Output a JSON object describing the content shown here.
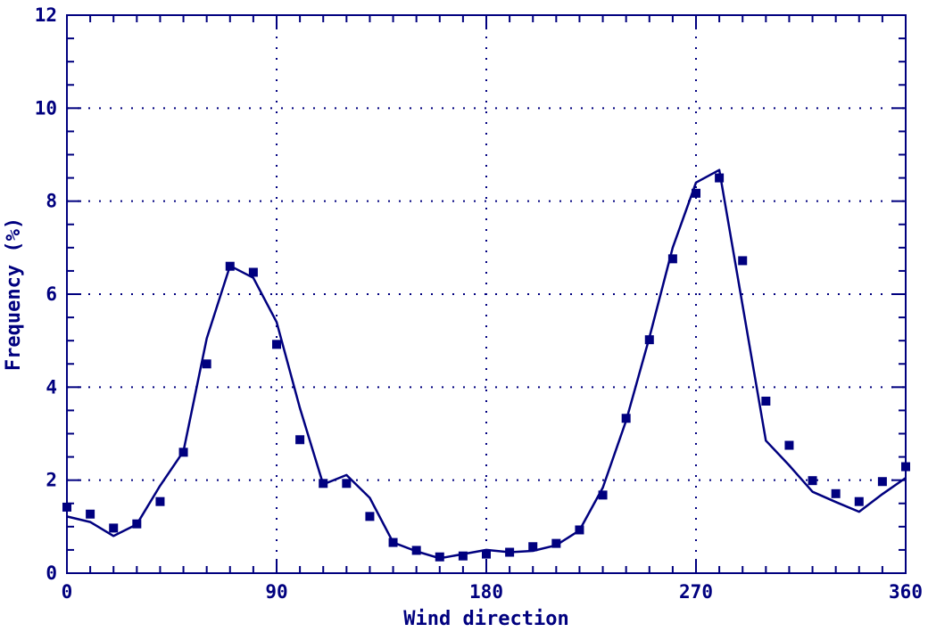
{
  "chart_data": {
    "type": "line",
    "title": "",
    "xlabel": "Wind direction",
    "ylabel": "Frequency (%)",
    "xlim": [
      0,
      360
    ],
    "ylim": [
      0,
      12
    ],
    "x_ticks": [
      0,
      90,
      180,
      270,
      360
    ],
    "x_tick_labels": [
      "0",
      "90",
      "180",
      "270",
      "360"
    ],
    "y_ticks": [
      0,
      2,
      4,
      6,
      8,
      10,
      12
    ],
    "y_tick_labels": [
      "0",
      "2",
      "4",
      "6",
      "8",
      "10",
      "12"
    ],
    "grid": true,
    "color": "#00007F",
    "series": [
      {
        "type": "scatter",
        "marker": "square",
        "x": [
          0,
          10,
          20,
          30,
          40,
          50,
          60,
          70,
          80,
          90,
          100,
          110,
          120,
          130,
          140,
          150,
          160,
          170,
          180,
          190,
          200,
          210,
          220,
          230,
          240,
          250,
          260,
          270,
          280,
          290,
          300,
          310,
          320,
          330,
          340,
          350,
          360
        ],
        "y": [
          1.42,
          1.27,
          0.97,
          1.06,
          1.54,
          2.6,
          4.5,
          6.6,
          6.47,
          4.92,
          2.87,
          1.93,
          1.93,
          1.22,
          0.66,
          0.49,
          0.35,
          0.37,
          0.41,
          0.45,
          0.57,
          0.64,
          0.93,
          1.68,
          3.33,
          5.02,
          6.76,
          8.17,
          8.5,
          6.72,
          3.7,
          2.75,
          1.99,
          1.71,
          1.54,
          1.97,
          2.29
        ]
      },
      {
        "type": "line",
        "x": [
          0,
          10,
          20,
          30,
          40,
          50,
          60,
          70,
          80,
          90,
          100,
          110,
          120,
          130,
          140,
          150,
          160,
          170,
          180,
          190,
          200,
          210,
          220,
          230,
          240,
          250,
          260,
          270,
          280,
          300,
          310,
          320,
          330,
          340,
          350,
          360
        ],
        "y": [
          1.22,
          1.1,
          0.8,
          1.05,
          1.88,
          2.62,
          5.05,
          6.61,
          6.35,
          5.4,
          3.55,
          1.91,
          2.11,
          1.62,
          0.66,
          0.47,
          0.32,
          0.41,
          0.5,
          0.45,
          0.48,
          0.6,
          0.92,
          1.84,
          3.28,
          5.07,
          7.0,
          8.4,
          8.67,
          2.85,
          2.32,
          1.75,
          1.53,
          1.32,
          1.7,
          2.05
        ]
      }
    ]
  }
}
